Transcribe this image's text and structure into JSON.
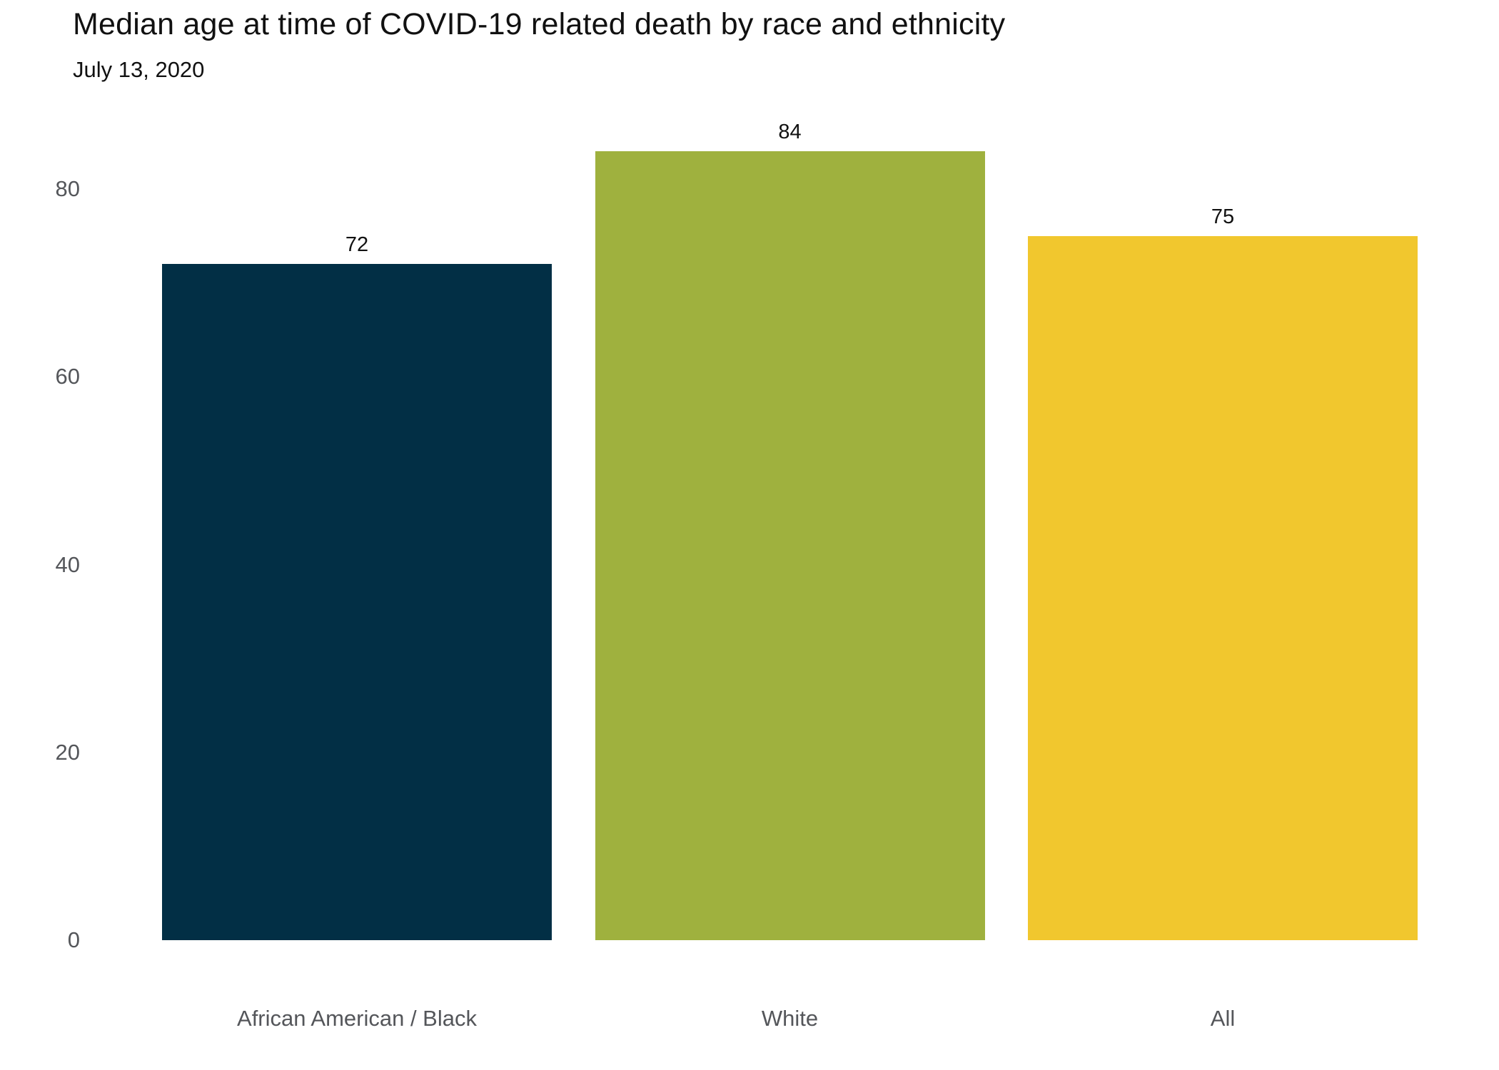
{
  "header": {
    "title": "Median age at time of COVID-19 related death by race and ethnicity",
    "subtitle": "July 13, 2020"
  },
  "chart_data": {
    "type": "bar",
    "title": "Median age at time of COVID-19 related death by race and ethnicity",
    "subtitle": "July 13, 2020",
    "categories": [
      "African American / Black",
      "White",
      "All"
    ],
    "values": [
      72,
      84,
      75
    ],
    "value_labels": [
      "72",
      "84",
      "75"
    ],
    "bar_colors": [
      "#022F45",
      "#9FB13E",
      "#F1C72E"
    ],
    "xlabel": "",
    "ylabel": "",
    "ylim": [
      0,
      80
    ],
    "yticks": [
      0,
      20,
      40,
      60,
      80
    ],
    "grid": false,
    "legend": "none",
    "background_color": "#ffffff",
    "text_colors": {
      "title": "#111111",
      "subtitle": "#111111",
      "value_label": "#111111",
      "axis_label": "#54565A"
    }
  }
}
